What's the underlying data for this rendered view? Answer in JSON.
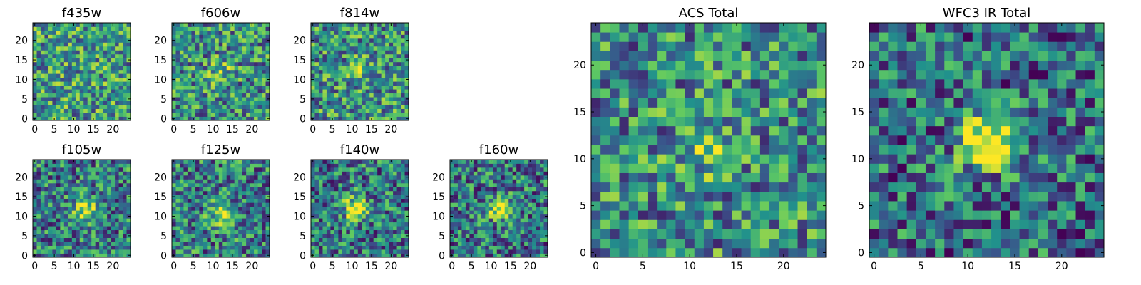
{
  "chart_data": [
    {
      "type": "heatmap",
      "id": "f435w",
      "title": "f435w",
      "colormap": "viridis",
      "grid": "25x25",
      "xlim": [
        0,
        24
      ],
      "ylim": [
        0,
        24
      ],
      "xticks": [
        0,
        5,
        10,
        15,
        20
      ],
      "yticks": [
        0,
        5,
        10,
        15,
        20
      ],
      "xtick_labels": [
        "0",
        "5",
        "10",
        "15",
        "20"
      ],
      "ytick_labels": [
        "0",
        "5",
        "10",
        "15",
        "20"
      ],
      "source_center": null,
      "source_strength": 0.0
    },
    {
      "type": "heatmap",
      "id": "f606w",
      "title": "f606w",
      "colormap": "viridis",
      "grid": "25x25",
      "xlim": [
        0,
        24
      ],
      "ylim": [
        0,
        24
      ],
      "xticks": [
        0,
        5,
        10,
        15,
        20
      ],
      "yticks": [
        0,
        5,
        10,
        15,
        20
      ],
      "xtick_labels": [
        "0",
        "5",
        "10",
        "15",
        "20"
      ],
      "ytick_labels": [
        "0",
        "5",
        "10",
        "15",
        "20"
      ],
      "source_center": [
        12,
        12
      ],
      "source_strength": 0.2
    },
    {
      "type": "heatmap",
      "id": "f814w",
      "title": "f814w",
      "colormap": "viridis",
      "grid": "25x25",
      "xlim": [
        0,
        24
      ],
      "ylim": [
        0,
        24
      ],
      "xticks": [
        0,
        5,
        10,
        15,
        20
      ],
      "yticks": [
        0,
        5,
        10,
        15,
        20
      ],
      "xtick_labels": [
        "0",
        "5",
        "10",
        "15",
        "20"
      ],
      "ytick_labels": [
        "0",
        "5",
        "10",
        "15",
        "20"
      ],
      "source_center": [
        12,
        12
      ],
      "source_strength": 0.15
    },
    {
      "type": "heatmap",
      "id": "f105w",
      "title": "f105w",
      "colormap": "viridis",
      "grid": "25x25",
      "xlim": [
        0,
        24
      ],
      "ylim": [
        0,
        24
      ],
      "xticks": [
        0,
        5,
        10,
        15,
        20
      ],
      "yticks": [
        0,
        5,
        10,
        15,
        20
      ],
      "xtick_labels": [
        "0",
        "5",
        "10",
        "15",
        "20"
      ],
      "ytick_labels": [
        "0",
        "5",
        "10",
        "15",
        "20"
      ],
      "source_center": [
        13,
        12
      ],
      "source_strength": 0.5
    },
    {
      "type": "heatmap",
      "id": "f125w",
      "title": "f125w",
      "colormap": "viridis",
      "grid": "25x25",
      "xlim": [
        0,
        24
      ],
      "ylim": [
        0,
        24
      ],
      "xticks": [
        0,
        5,
        10,
        15,
        20
      ],
      "yticks": [
        0,
        5,
        10,
        15,
        20
      ],
      "xtick_labels": [
        "0",
        "5",
        "10",
        "15",
        "20"
      ],
      "ytick_labels": [
        "0",
        "5",
        "10",
        "15",
        "20"
      ],
      "source_center": [
        12,
        11
      ],
      "source_strength": 0.45
    },
    {
      "type": "heatmap",
      "id": "f140w",
      "title": "f140w",
      "colormap": "viridis",
      "grid": "25x25",
      "xlim": [
        0,
        24
      ],
      "ylim": [
        0,
        24
      ],
      "xticks": [
        0,
        5,
        10,
        15,
        20
      ],
      "yticks": [
        0,
        5,
        10,
        15,
        20
      ],
      "xtick_labels": [
        "0",
        "5",
        "10",
        "15",
        "20"
      ],
      "ytick_labels": [
        "0",
        "5",
        "10",
        "15",
        "20"
      ],
      "source_center": [
        11,
        12
      ],
      "source_strength": 0.55
    },
    {
      "type": "heatmap",
      "id": "f160w",
      "title": "f160w",
      "colormap": "viridis",
      "grid": "25x25",
      "xlim": [
        0,
        24
      ],
      "ylim": [
        0,
        24
      ],
      "xticks": [
        0,
        5,
        10,
        15,
        20
      ],
      "yticks": [
        0,
        5,
        10,
        15,
        20
      ],
      "xtick_labels": [
        "0",
        "5",
        "10",
        "15",
        "20"
      ],
      "ytick_labels": [
        "0",
        "5",
        "10",
        "15",
        "20"
      ],
      "source_center": [
        12,
        12
      ],
      "source_strength": 0.6
    },
    {
      "type": "heatmap",
      "id": "acs_total",
      "title": "ACS Total",
      "colormap": "viridis",
      "grid": "25x25",
      "xlim": [
        0,
        24
      ],
      "ylim": [
        0,
        24
      ],
      "xticks": [
        0,
        5,
        10,
        15,
        20
      ],
      "yticks": [
        0,
        5,
        10,
        15,
        20
      ],
      "xtick_labels": [
        "0",
        "5",
        "10",
        "15",
        "20"
      ],
      "ytick_labels": [
        "0",
        "5",
        "10",
        "15",
        "20"
      ],
      "source_center": [
        12,
        11
      ],
      "source_strength": 0.25
    },
    {
      "type": "heatmap",
      "id": "wfc3_ir_total",
      "title": "WFC3 IR Total",
      "colormap": "viridis",
      "grid": "25x25",
      "xlim": [
        0,
        24
      ],
      "ylim": [
        0,
        24
      ],
      "xticks": [
        0,
        5,
        10,
        15,
        20
      ],
      "yticks": [
        0,
        5,
        10,
        15,
        20
      ],
      "xtick_labels": [
        "0",
        "5",
        "10",
        "15",
        "20"
      ],
      "ytick_labels": [
        "0",
        "5",
        "10",
        "15",
        "20"
      ],
      "source_center": [
        12,
        12
      ],
      "source_strength": 0.75
    }
  ],
  "colors": {
    "cmap_stops": [
      "#440154",
      "#3b528b",
      "#21918c",
      "#5ec962",
      "#fde725"
    ]
  }
}
